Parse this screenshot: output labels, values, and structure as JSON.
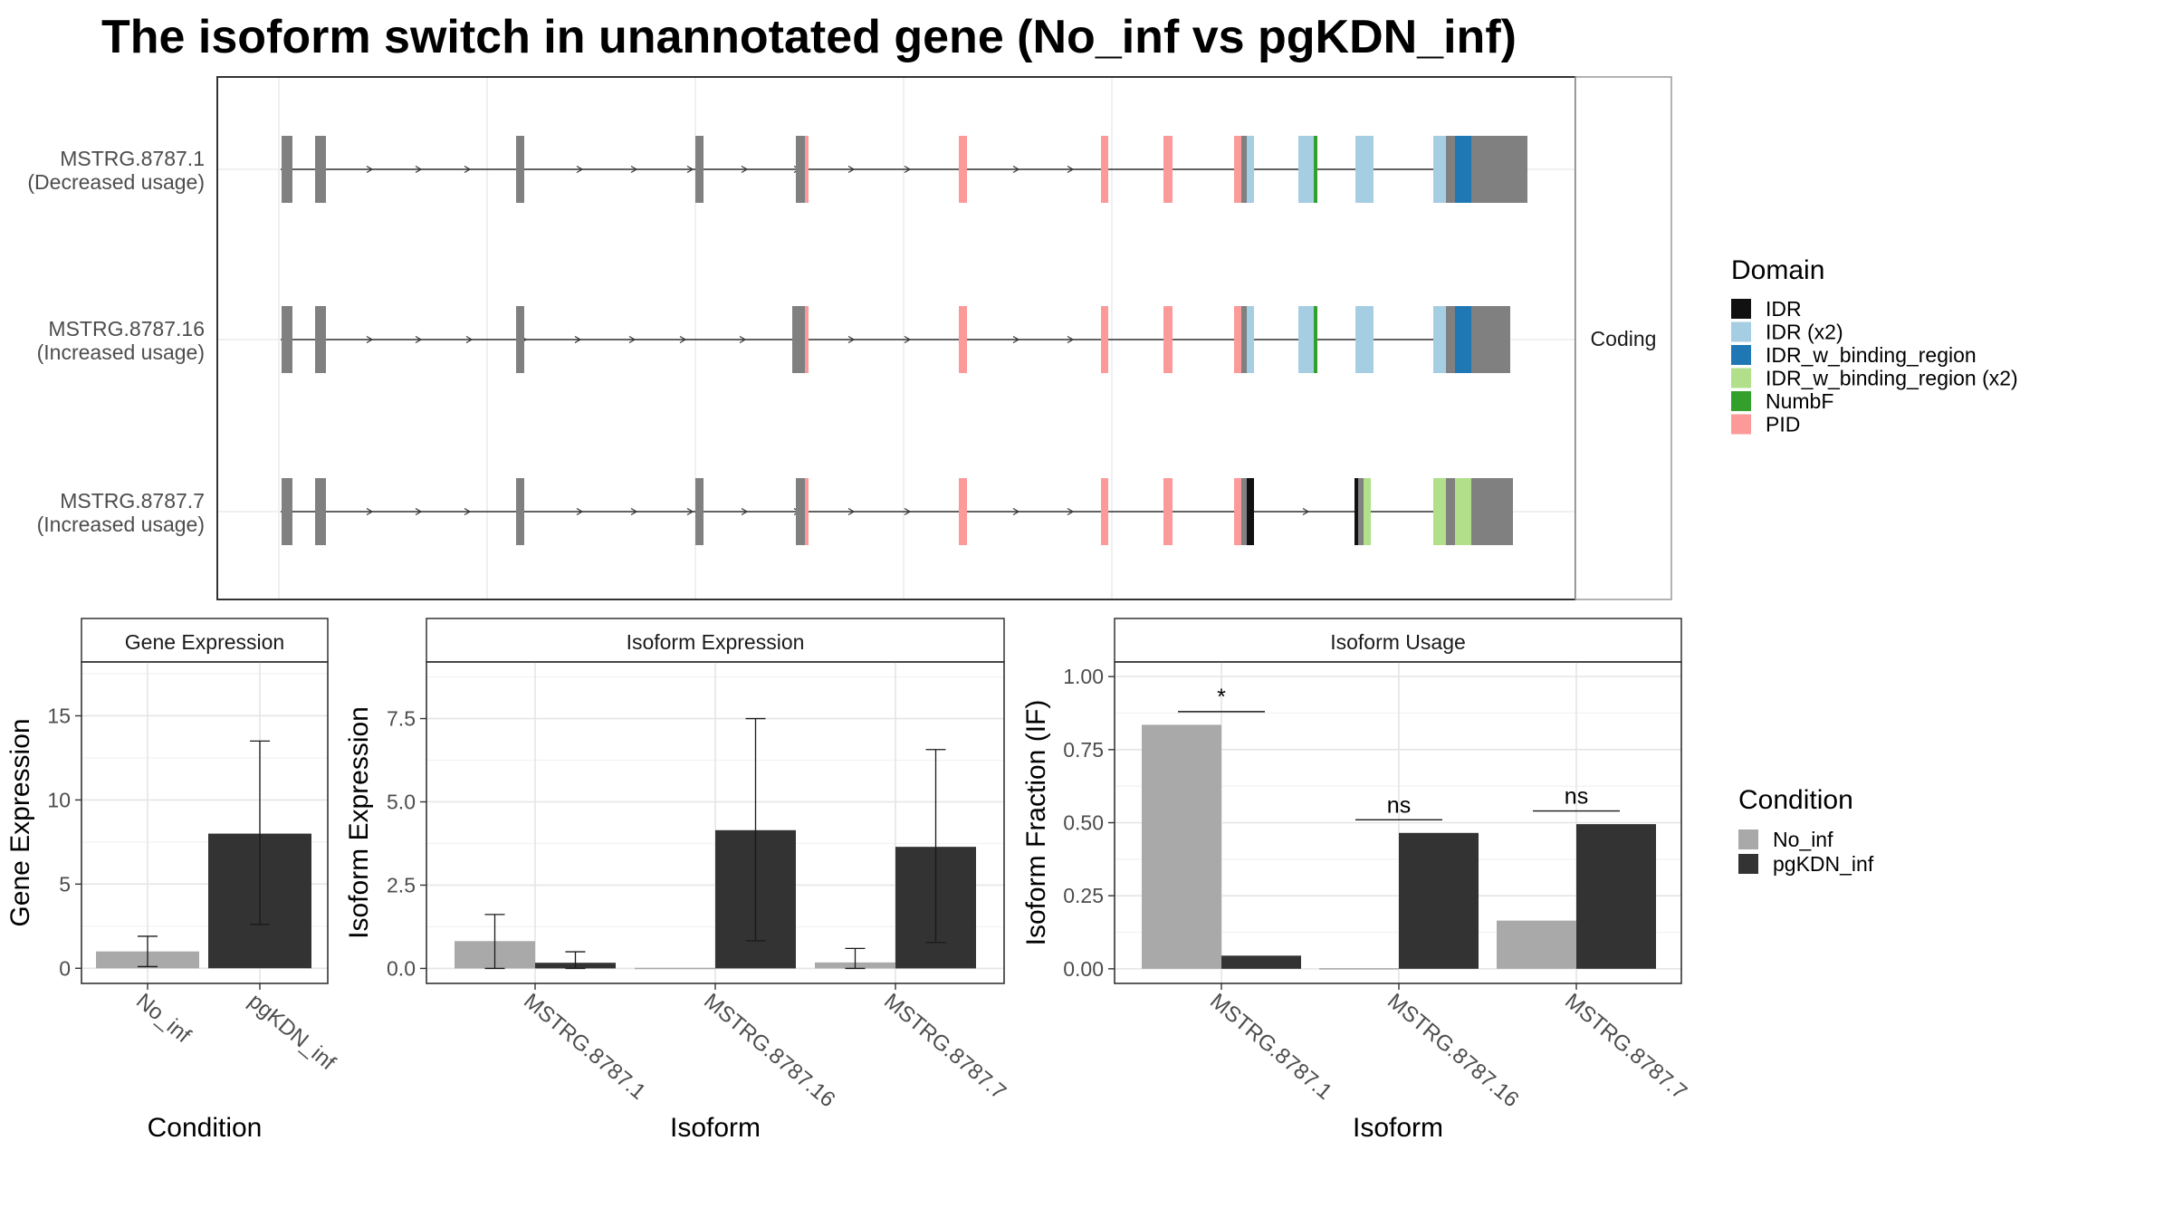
{
  "title": "The isoform switch in unannotated gene (No_inf vs pgKDN_inf)",
  "structure_panel": {
    "facet_label": "Coding",
    "isoforms": [
      {
        "name": "MSTRG.8787.1",
        "usage": "(Decreased usage)"
      },
      {
        "name": "MSTRG.8787.16",
        "usage": "(Increased usage)"
      },
      {
        "name": "MSTRG.8787.7",
        "usage": "(Increased usage)"
      }
    ]
  },
  "domain_legend": {
    "title": "Domain",
    "items": [
      {
        "label": "IDR",
        "color": "#111111"
      },
      {
        "label": "IDR (x2)",
        "color": "#a6cee3"
      },
      {
        "label": "IDR_w_binding_region",
        "color": "#1f78b4"
      },
      {
        "label": "IDR_w_binding_region (x2)",
        "color": "#b2df8a"
      },
      {
        "label": "NumbF",
        "color": "#33a02c"
      },
      {
        "label": "PID",
        "color": "#fb9a99"
      }
    ]
  },
  "condition_legend": {
    "title": "Condition",
    "items": [
      {
        "label": "No_inf",
        "color": "#a9a9a9"
      },
      {
        "label": "pgKDN_inf",
        "color": "#333333"
      }
    ]
  },
  "chart_data": [
    {
      "type": "bar",
      "panel": "Gene Expression",
      "xlabel": "Condition",
      "ylabel": "Gene Expression",
      "ylim": [
        -0.9,
        18.2
      ],
      "yticks": [
        0,
        5,
        10,
        15
      ],
      "categories": [
        "No_inf",
        "pgKDN_inf"
      ],
      "values": [
        1.0,
        8.0
      ],
      "error_low": [
        0.1,
        2.6
      ],
      "error_high": [
        1.9,
        13.5
      ]
    },
    {
      "type": "bar",
      "panel": "Isoform Expression",
      "xlabel": "Isoform",
      "ylabel": "Isoform Expression",
      "ylim": [
        -0.45,
        9.2
      ],
      "yticks": [
        0.0,
        2.5,
        5.0,
        7.5
      ],
      "categories": [
        "MSTRG.8787.1",
        "MSTRG.8787.16",
        "MSTRG.8787.7"
      ],
      "series": [
        {
          "name": "No_inf",
          "values": [
            0.82,
            0.0,
            0.18
          ],
          "error_low": [
            0.0,
            0.0,
            0.0
          ],
          "error_high": [
            1.62,
            0.0,
            0.6
          ]
        },
        {
          "name": "pgKDN_inf",
          "values": [
            0.17,
            4.15,
            3.65
          ],
          "error_low": [
            0.0,
            0.83,
            0.78
          ],
          "error_high": [
            0.5,
            7.5,
            6.57
          ]
        }
      ]
    },
    {
      "type": "bar",
      "panel": "Isoform Usage",
      "xlabel": "Isoform",
      "ylabel": "Isoform Fraction (IF)",
      "ylim": [
        -0.05,
        1.05
      ],
      "yticks": [
        0.0,
        0.25,
        0.5,
        0.75,
        1.0
      ],
      "categories": [
        "MSTRG.8787.1",
        "MSTRG.8787.16",
        "MSTRG.8787.7"
      ],
      "series": [
        {
          "name": "No_inf",
          "values": [
            0.835,
            0.0,
            0.165
          ]
        },
        {
          "name": "pgKDN_inf",
          "values": [
            0.045,
            0.465,
            0.495
          ]
        }
      ],
      "significance": [
        {
          "category": "MSTRG.8787.1",
          "label": "*",
          "y": 0.88
        },
        {
          "category": "MSTRG.8787.16",
          "label": "ns",
          "y": 0.51
        },
        {
          "category": "MSTRG.8787.7",
          "label": "ns",
          "y": 0.54
        }
      ]
    }
  ]
}
